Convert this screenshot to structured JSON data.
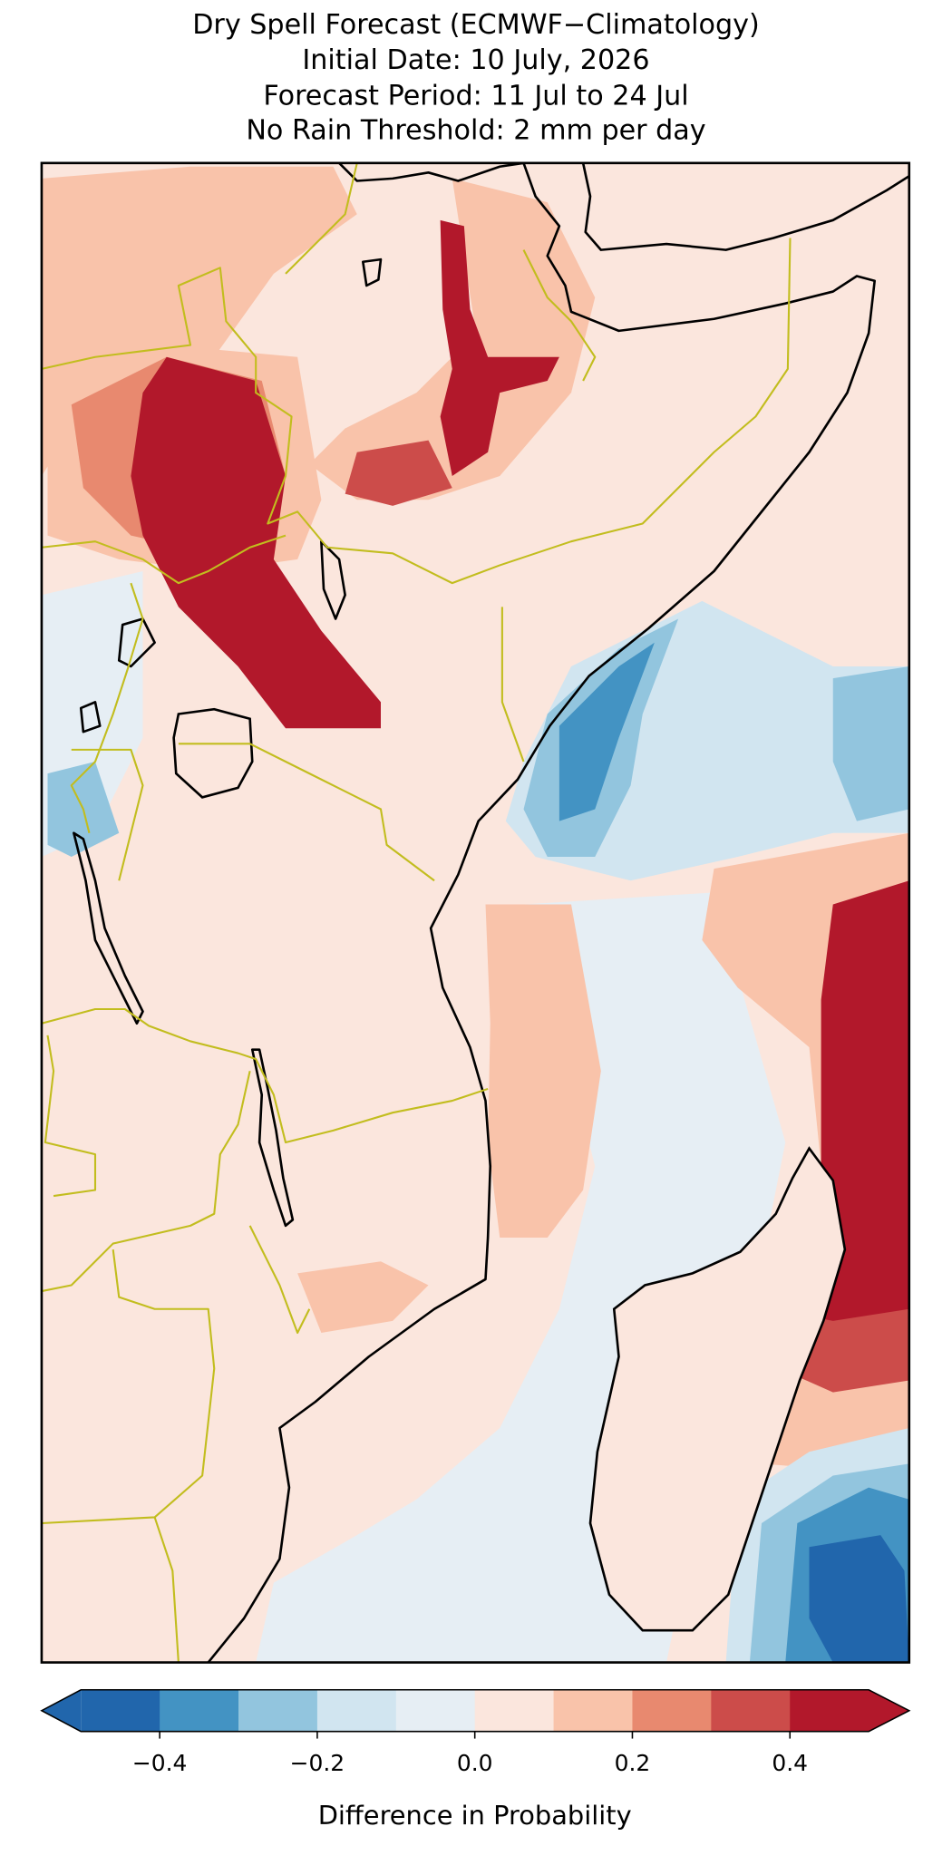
{
  "chart_data": {
    "type": "map",
    "title": [
      "Dry Spell Forecast (ECMWF−Climatology)",
      "Initial Date: 10 July, 2026",
      "Forecast Period: 11 Jul to 24 Jul",
      "No Rain Threshold: 2 mm per day"
    ],
    "colorbar": {
      "label": "Difference in Probability",
      "boundaries": [
        -0.5,
        -0.4,
        -0.3,
        -0.2,
        -0.1,
        0,
        0.1,
        0.2,
        0.3,
        0.4,
        0.5
      ],
      "colors": [
        "#2166ac",
        "#4393c3",
        "#92c5de",
        "#d1e5f0",
        "#e6eef4",
        "#fbe6dd",
        "#f9c3aa",
        "#e8896f",
        "#cc4c4a",
        "#b2182b"
      ],
      "extend": "both",
      "ticks": [
        {
          "value": -0.4,
          "label": "−0.4"
        },
        {
          "value": -0.2,
          "label": "−0.2"
        },
        {
          "value": 0,
          "label": "0.0"
        },
        0.2,
        0.4
      ]
    }
  }
}
